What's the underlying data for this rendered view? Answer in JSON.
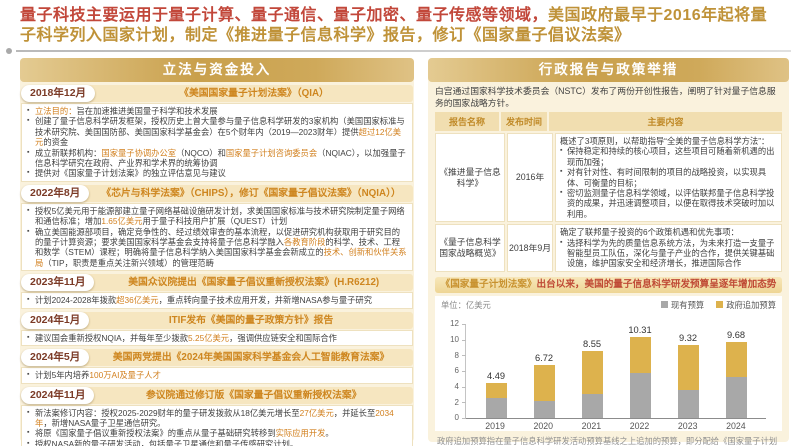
{
  "page": {
    "title_red": "量子科技主要运用于量子计算、量子通信、量子加密、量子传感等领域，",
    "title_gold": "美国政府最早于2016年起将量子科学列入国家计划，制定《推进量子信息科学》报告，修订《国家量子倡议法案》"
  },
  "left_panel": {
    "header": "立法与资金投入",
    "sections": [
      {
        "date": "2018年12月",
        "title": "《美国国家量子计划法案》（QIA）",
        "bullets": [
          [
            {
              "t": "立法目的：",
              "h": true
            },
            {
              "t": "旨在加速推进美国量子科学和技术发展",
              "h": false
            }
          ],
          [
            {
              "t": "创建了量子信息科学研发框架，授权历史上曾大量参与量子信息科学研发的3家机构（美国国家标准与技术研究院、美国国防部、美国国家科学基金会）在5个财年内（2019—2023财年）提供",
              "h": false
            },
            {
              "t": "超过12亿美元",
              "h": true
            },
            {
              "t": "的资金",
              "h": false
            }
          ],
          [
            {
              "t": "成立新联邦机构：",
              "h": false
            },
            {
              "t": "国家量子协调办公室",
              "h": true
            },
            {
              "t": "（NQCO）和",
              "h": false
            },
            {
              "t": "国家量子计划咨询委员会",
              "h": true
            },
            {
              "t": "（NQIAC），以加强量子信息科学研究在政府、产业界和学术界的统筹协调",
              "h": false
            }
          ],
          [
            {
              "t": "提供对《国家量子计划法案》的独立评估意见与建议",
              "h": false
            }
          ]
        ]
      },
      {
        "date": "2022年8月",
        "title": "《芯片与科学法案》（CHIPS），修订《国家量子倡议法案》（NQIA））",
        "bullets": [
          [
            {
              "t": "授权5亿美元用于能源部建立量子网络基础设施研发计划，求美国国家标准与技术研究院制定量子网络和通信标准；增加",
              "h": false
            },
            {
              "t": "1.65亿美元",
              "h": true
            },
            {
              "t": "用于量子科技用户扩展（QUEST）计划",
              "h": false
            }
          ],
          [
            {
              "t": "确立美国能源部项目，确定竞争性的、经过绩效审查的基本流程，以促进研究机构获取用于研究目的的量子计算资源；要求美国国家科学基金会支持将量子信息科学融入",
              "h": false
            },
            {
              "t": "各教育阶段",
              "h": true
            },
            {
              "t": "的科学、技术、工程和数学（STEM）课程；明确将量子信息科学纳入美国国家科学基金会新成立的",
              "h": false
            },
            {
              "t": "技术、创新和伙伴关系局",
              "h": true
            },
            {
              "t": "（TIP，职责是重点关注新兴领域）的管理范畴",
              "h": false
            }
          ]
        ]
      },
      {
        "date": "2023年11月",
        "title": "美国众议院提出《国家量子倡议重新授权法案》(H.R6212)",
        "bullets": [
          [
            {
              "t": "计划2024-2028年拨款",
              "h": false
            },
            {
              "t": "超36亿美元",
              "h": true
            },
            {
              "t": "，重点转向量子技术应用开发，并新增NASA参与量子研究",
              "h": false
            }
          ]
        ]
      },
      {
        "date": "2024年1月",
        "title": "ITIF发布《美国的量子政策方针》报告",
        "bullets": [
          [
            {
              "t": "建议国会重新授权NQIA，并每年至少拨款",
              "h": false
            },
            {
              "t": "5.25亿美元",
              "h": true
            },
            {
              "t": "，强调供应链安全和国际合作",
              "h": false
            }
          ]
        ]
      },
      {
        "date": "2024年5月",
        "title": "美国两党提出《2024年美国国家科学基金会人工智能教育法案》",
        "bullets": [
          [
            {
              "t": "计划5年内培养",
              "h": false
            },
            {
              "t": "100万AI及量子人才",
              "h": true
            }
          ]
        ]
      },
      {
        "date": "2024年11月",
        "title": "参议院通过修订版《国家量子倡议重新授权法案》",
        "bullets": [
          [
            {
              "t": "新法案修订内容：授权2025-2029财年的量子研发拨款从18亿美元增长至",
              "h": false
            },
            {
              "t": "27亿美元",
              "h": true
            },
            {
              "t": "，并延长至",
              "h": false
            },
            {
              "t": "2034年",
              "h": true
            },
            {
              "t": "，新增NASA量子卫星通信研究。",
              "h": false
            }
          ],
          [
            {
              "t": "将原《国家量子倡议重新授权法案》的重点从量子基础研究转移到",
              "h": false
            },
            {
              "t": "实际应用开发",
              "h": true
            },
            {
              "t": "。",
              "h": false
            }
          ],
          [
            {
              "t": "授权NASA新的量子研发活动，包括量子卫星通信和量子传感研究计划。",
              "h": false
            }
          ]
        ]
      }
    ]
  },
  "right_panel": {
    "header": "行政报告与政策举措",
    "intro": "白宫通过国家科学技术委员会（NSTC）发布了两份开创性报告，阐明了针对量子信息服务的国家战略方针。",
    "table": {
      "headers": [
        "报告名称",
        "发布时间",
        "主要内容"
      ],
      "rows": [
        {
          "name": "《推进量子信息科学》",
          "date": "2016年",
          "content_intro": "概述了3项原则，以帮助指导“全美的量子信息科学方法”：",
          "bullets": [
            "保持稳定和持续的核心项目，这些项目可随着新机遇的出现而加强；",
            "对有针对性、有时间限制的项目的战略投资，以实现具体、可衡量的目标；",
            "密切监测量子信息科学领域，以评估联邦量子信息科学投资的成果，并迅速调整项目，以便在取得技术突破时加以利用。"
          ]
        },
        {
          "name": "《量子信息科学国家战略概览》",
          "date": "2018年9月",
          "content_intro": "确定了联邦量子投资的6个政策机遇和优先事项：",
          "bullets": [
            "选择科学为先的质量信息系统方法，为未来打造一支量子智能型员工队伍，深化与量子产业的合作，提供关键基础设施，维护国家安全和经济增长，推进国际合作"
          ]
        }
      ]
    },
    "banner": {
      "gold": "《国家量子计划法案》",
      "red": "出台以来，美国的量子信息科学研发预算呈逐年增加态势"
    },
    "footnote": "政府追加预算指在量子信息科学研发活动预算基线之上追加的预算，即分配给《国家量子计划法案》的资金"
  },
  "chart_data": {
    "type": "bar",
    "stacked": true,
    "unit_label": "单位：亿美元",
    "categories": [
      "2019",
      "2020",
      "2021",
      "2022",
      "2023",
      "2024"
    ],
    "series": [
      {
        "name": "现有预算",
        "color": "#a8a8a8",
        "values": [
          2.6,
          2.2,
          3.0,
          5.7,
          3.6,
          5.2
        ]
      },
      {
        "name": "政府追加预算",
        "color": "#ddb24d",
        "values": [
          1.89,
          4.52,
          5.55,
          4.61,
          5.72,
          4.48
        ]
      }
    ],
    "totals": [
      4.49,
      6.72,
      8.55,
      10.31,
      9.32,
      9.68
    ],
    "yticks": [
      0,
      2,
      4,
      6,
      8,
      10,
      12
    ],
    "ylim": [
      0,
      12
    ],
    "grid": false,
    "legend_position": "top-right"
  },
  "colors": {
    "title_red": "#c2473a",
    "title_gold": "#bf9238",
    "header_gold": "#c9a04c",
    "highlight_orange": "#d2801f",
    "date_brown": "#7b3a26",
    "bar_gray": "#a8a8a8",
    "bar_gold": "#ddb24d"
  }
}
